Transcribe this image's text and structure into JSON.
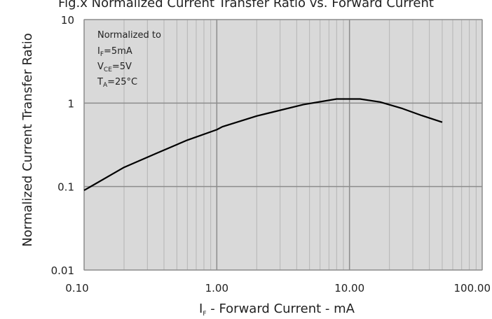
{
  "chart_data": {
    "type": "line",
    "title": "Fig.x Normalized Current Transfer Ratio vs. Forward Current",
    "xlabel_main": "I",
    "xlabel_sub": "F",
    "xlabel_rest": " - Forward Current - mA",
    "ylabel": "Normalized Current Transfer Ratio",
    "xscale": "log",
    "yscale": "log",
    "xlim": [
      0.1,
      100
    ],
    "ylim": [
      0.01,
      10
    ],
    "grid": true,
    "x_ticks": [
      {
        "value": 0.1,
        "label": "0.10"
      },
      {
        "value": 1,
        "label": "1.00"
      },
      {
        "value": 10,
        "label": "10.00"
      },
      {
        "value": 100,
        "label": "100.00"
      }
    ],
    "y_ticks": [
      {
        "value": 0.01,
        "label": "0.01"
      },
      {
        "value": 0.1,
        "label": "0.1"
      },
      {
        "value": 1,
        "label": "1"
      },
      {
        "value": 10,
        "label": "10"
      }
    ],
    "annotation": {
      "line1": "Normalized to",
      "if_main": "I",
      "if_sub": "F",
      "if_val": "=5mA",
      "vce_main": "V",
      "vce_sub": "CE",
      "vce_val": "=5V",
      "ta_main": "T",
      "ta_sub": "A",
      "ta_val": "=25°C"
    },
    "series": [
      {
        "x": [
          0.1,
          0.2,
          0.35,
          0.6,
          1.0,
          1.1,
          2.0,
          4.5,
          8.0,
          12.0,
          17.0,
          25.0,
          35.0,
          50.0
        ],
        "y": [
          0.09,
          0.17,
          0.25,
          0.36,
          0.48,
          0.52,
          0.7,
          0.96,
          1.12,
          1.12,
          1.03,
          0.86,
          0.71,
          0.59
        ]
      }
    ],
    "colors": {
      "plot_bg": "#d9d9d9",
      "grid_major": "#8c8c8c",
      "grid_minor": "#b5b5b5",
      "line": "#000000"
    }
  }
}
